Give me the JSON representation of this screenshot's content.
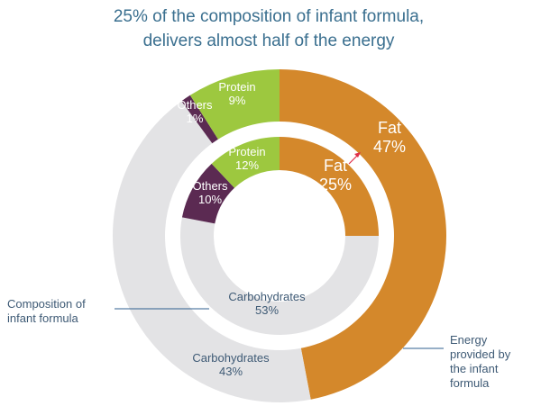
{
  "title_lines": [
    "25% of the composition of infant formula,",
    "delivers almost half of the energy"
  ],
  "colors": {
    "fat": "#d4882b",
    "protein": "#9dc83f",
    "others": "#5b2a52",
    "carbohydrates": "#e3e3e5",
    "text_dark": "#3e5a75",
    "text_light": "#ffffff",
    "arrow": "#e0304a",
    "leader": "#2f5f8f"
  },
  "annotations": {
    "composition": [
      "Composition of",
      "infant formula"
    ],
    "energy": [
      "Energy",
      "provided by",
      "the infant",
      "formula"
    ]
  },
  "chart_data": {
    "type": "pie",
    "subtype": "nested-donut",
    "title": "25% of the composition of infant formula, delivers almost half of the energy",
    "series": [
      {
        "name": "Composition of infant formula",
        "ring": "inner",
        "slices": [
          {
            "label": "Fat",
            "value": 25,
            "display": "25%"
          },
          {
            "label": "Carbohydrates",
            "value": 53,
            "display": "53%"
          },
          {
            "label": "Others",
            "value": 10,
            "display": "10%"
          },
          {
            "label": "Protein",
            "value": 12,
            "display": "12%"
          }
        ]
      },
      {
        "name": "Energy provided by the infant formula",
        "ring": "outer",
        "slices": [
          {
            "label": "Fat",
            "value": 47,
            "display": "47%"
          },
          {
            "label": "Carbohydrates",
            "value": 43,
            "display": "43%"
          },
          {
            "label": "Others",
            "value": 1,
            "display": "1%"
          },
          {
            "label": "Protein",
            "value": 9,
            "display": "9%"
          }
        ]
      }
    ]
  }
}
